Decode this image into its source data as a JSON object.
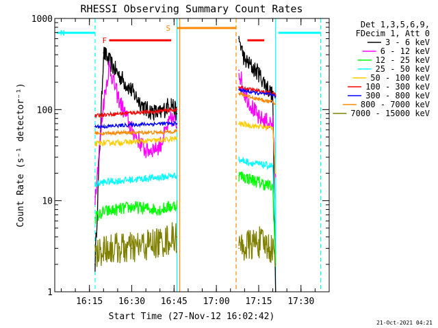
{
  "chart_data": {
    "type": "line",
    "title": "RHESSI Observing Summary Count Rates",
    "xlabel": "Start Time (27-Nov-12 16:02:42)",
    "ylabel": "Count Rate (s⁻¹ detector⁻¹)",
    "yscale": "log",
    "ylim": [
      1,
      1000
    ],
    "xlim": [
      "16:02:42",
      "17:40:00"
    ],
    "x_ticks": [
      "16:15",
      "16:30",
      "16:45",
      "17:00",
      "17:15",
      "17:30"
    ],
    "y_ticks": [
      "1",
      "10",
      "100",
      "1000"
    ],
    "grid": false,
    "legend": {
      "position": "right",
      "header": [
        "Det 1,3,5,6,9,",
        "FDecim 1, Att 0"
      ]
    },
    "footer": "21-Oct-2021 04:21",
    "series": [
      {
        "name": "3 - 6 keV",
        "color": "#000000",
        "x": [
          "16:07",
          "16:12",
          "16:17",
          "16:20",
          "16:25",
          "16:30",
          "16:35",
          "16:40",
          "16:44",
          "16:46",
          "16:50",
          "17:00",
          "17:07",
          "17:08",
          "17:10",
          "17:15",
          "17:20",
          "17:21"
        ],
        "y": [
          null,
          null,
          2,
          420,
          250,
          160,
          100,
          90,
          120,
          90,
          null,
          null,
          null,
          600,
          350,
          250,
          140,
          1
        ]
      },
      {
        "name": "6 - 12 keV",
        "color": "#ff00ff",
        "x": [
          "16:12",
          "16:15",
          "16:17",
          "16:20",
          "16:22",
          "16:25",
          "16:30",
          "16:35",
          "16:40",
          "16:44",
          "16:46",
          "16:50",
          "17:07",
          "17:08",
          "17:10",
          "17:15",
          "17:20",
          "17:21"
        ],
        "y": [
          null,
          null,
          11,
          120,
          300,
          140,
          60,
          35,
          40,
          80,
          70,
          null,
          null,
          270,
          150,
          80,
          70,
          20
        ]
      },
      {
        "name": "12 - 25 keV",
        "color": "#00ff00",
        "x": [
          "16:17",
          "16:20",
          "16:30",
          "16:40",
          "16:46",
          "16:50",
          "17:07",
          "17:08",
          "17:15",
          "17:20",
          "17:21"
        ],
        "y": [
          6.5,
          7.5,
          8.5,
          8,
          9,
          null,
          null,
          19,
          16,
          14,
          2
        ]
      },
      {
        "name": "25 - 50 keV",
        "color": "#00ffff",
        "x": [
          "16:17",
          "16:20",
          "16:30",
          "16:40",
          "16:46",
          "16:50",
          "17:07",
          "17:08",
          "17:15",
          "17:20",
          "17:21"
        ],
        "y": [
          15,
          16,
          17,
          18,
          19,
          null,
          null,
          28,
          25,
          24,
          4
        ]
      },
      {
        "name": "50 - 100 keV",
        "color": "#ffcc00",
        "x": [
          "16:17",
          "16:20",
          "16:30",
          "16:40",
          "16:46",
          "16:50",
          "17:07",
          "17:08",
          "17:15",
          "17:20",
          "17:21"
        ],
        "y": [
          42,
          43,
          44,
          46,
          48,
          null,
          null,
          70,
          65,
          63,
          20
        ]
      },
      {
        "name": "100 - 300 keV",
        "color": "#ff0000",
        "x": [
          "16:17",
          "16:20",
          "16:30",
          "16:40",
          "16:46",
          "16:50",
          "17:07",
          "17:08",
          "17:15",
          "17:20",
          "17:21"
        ],
        "y": [
          85,
          88,
          92,
          96,
          100,
          null,
          null,
          175,
          160,
          150,
          145
        ]
      },
      {
        "name": "300 - 800 keV",
        "color": "#0000ff",
        "x": [
          "16:17",
          "16:20",
          "16:30",
          "16:40",
          "16:46",
          "16:50",
          "17:07",
          "17:08",
          "17:15",
          "17:20",
          "17:21"
        ],
        "y": [
          65,
          65,
          68,
          70,
          70,
          null,
          null,
          165,
          150,
          145,
          140
        ]
      },
      {
        "name": "800 - 7000 keV",
        "color": "#ff8800",
        "x": [
          "16:17",
          "16:20",
          "16:30",
          "16:40",
          "16:46",
          "16:50",
          "17:07",
          "17:08",
          "17:15",
          "17:20",
          "17:21"
        ],
        "y": [
          55,
          55,
          56,
          56,
          58,
          null,
          null,
          150,
          130,
          120,
          115
        ]
      },
      {
        "name": "7000 - 15000 keV",
        "color": "#808000",
        "x": [
          "16:17",
          "16:20",
          "16:30",
          "16:40",
          "16:46",
          "16:50",
          "17:07",
          "17:08",
          "17:15",
          "17:20",
          "17:21"
        ],
        "y": [
          2.5,
          3,
          3,
          3.5,
          4,
          null,
          null,
          3,
          3.5,
          3,
          2
        ]
      }
    ],
    "annotations": [
      {
        "label": "F",
        "color": "#ff0000",
        "segments": [
          [
            "16:22",
            "16:44"
          ],
          [
            "17:11",
            "17:17"
          ]
        ]
      },
      {
        "label": "N",
        "color": "#00ffff",
        "segments": [
          [
            "16:02:42",
            "16:17"
          ],
          [
            "17:22",
            "17:37"
          ]
        ]
      },
      {
        "label": "S",
        "color": "#ff8800",
        "segments": [
          [
            "16:46",
            "17:07"
          ]
        ]
      }
    ],
    "vertical_lines": [
      {
        "x": "16:17",
        "color": "#00ffff",
        "style": "dashed"
      },
      {
        "x": "16:46",
        "color": "#00ffff",
        "style": "solid"
      },
      {
        "x": "16:47",
        "color": "#ff8800",
        "style": "solid"
      },
      {
        "x": "17:07",
        "color": "#ff8800",
        "style": "dashed"
      },
      {
        "x": "17:21",
        "color": "#00ffff",
        "style": "solid"
      },
      {
        "x": "17:37",
        "color": "#00ffff",
        "style": "dashed"
      }
    ]
  }
}
